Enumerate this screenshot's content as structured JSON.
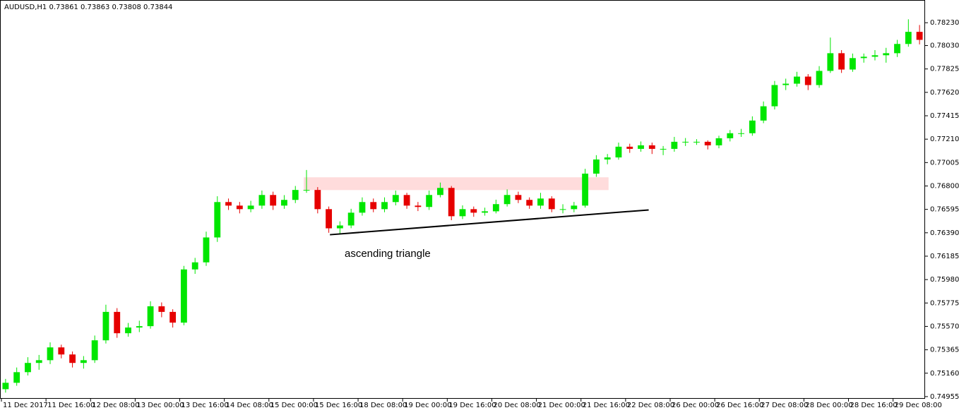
{
  "chart_data": {
    "type": "candlestick",
    "title": "AUDUSD,H1  0.73861 0.73863 0.73808 0.73844",
    "annotation": "ascending triangle",
    "up_color": "#00e600",
    "down_color": "#e60000",
    "categories": [
      "11 Dec 2017",
      null,
      null,
      null,
      "11 Dec 16:00",
      null,
      null,
      null,
      "12 Dec 08:00",
      null,
      null,
      null,
      "13 Dec 00:00",
      null,
      null,
      null,
      "13 Dec 16:00",
      null,
      null,
      null,
      "14 Dec 08:00",
      null,
      null,
      null,
      "15 Dec 00:00",
      null,
      null,
      null,
      "15 Dec 16:00",
      null,
      null,
      null,
      "18 Dec 08:00",
      null,
      null,
      null,
      "19 Dec 00:00",
      null,
      null,
      null,
      "19 Dec 16:00",
      null,
      null,
      null,
      "20 Dec 08:00",
      null,
      null,
      null,
      "21 Dec 00:00",
      null,
      null,
      null,
      "21 Dec 16:00",
      null,
      null,
      null,
      "22 Dec 08:00",
      null,
      null,
      null,
      "26 Dec 00:00",
      null,
      null,
      null,
      "26 Dec 16:00",
      null,
      null,
      null,
      "27 Dec 08:00",
      null,
      null,
      null,
      "28 Dec 00:00",
      null,
      null,
      null,
      "28 Dec 16:00",
      null,
      null,
      null,
      "29 Dec 08:00",
      null,
      null
    ],
    "open": [
      0.7502,
      0.75076,
      0.75169,
      0.7525,
      0.75274,
      0.75386,
      0.75324,
      0.7525,
      0.75274,
      0.75448,
      0.75697,
      0.7551,
      0.7556,
      0.75572,
      0.75746,
      0.75697,
      0.75603,
      0.76069,
      0.76131,
      0.76349,
      0.76659,
      0.76628,
      0.76597,
      0.76628,
      0.76721,
      0.76628,
      0.76678,
      0.76765,
      0.76765,
      0.76597,
      0.76429,
      0.76454,
      0.76566,
      0.76659,
      0.76597,
      0.76659,
      0.76721,
      0.76628,
      0.76616,
      0.76721,
      0.76783,
      0.76535,
      0.76597,
      0.76566,
      0.76578,
      0.76641,
      0.76721,
      0.76678,
      0.76628,
      0.7669,
      0.76597,
      0.76597,
      0.76628,
      0.76908,
      0.77032,
      0.7705,
      0.77144,
      0.77125,
      0.77156,
      0.77125,
      0.77125,
      0.77187,
      0.77187,
      0.77187,
      0.77156,
      0.77218,
      0.77262,
      0.77262,
      0.77373,
      0.77498,
      0.77684,
      0.77696,
      0.77758,
      0.77684,
      0.77808,
      0.77963,
      0.7782,
      0.7792,
      0.77932,
      0.77945,
      0.77963,
      0.78044,
      0.7815
    ],
    "high": [
      0.7511,
      0.7521,
      0.753,
      0.7532,
      0.7543,
      0.7541,
      0.7535,
      0.7531,
      0.7549,
      0.7576,
      0.7573,
      0.756,
      0.7562,
      0.7579,
      0.7578,
      0.7572,
      0.761,
      0.7617,
      0.764,
      0.7671,
      0.7669,
      0.7666,
      0.7667,
      0.7676,
      0.7675,
      0.7672,
      0.768,
      0.7694,
      0.7679,
      0.7662,
      0.7649,
      0.766,
      0.767,
      0.7669,
      0.767,
      0.7676,
      0.7674,
      0.7666,
      0.7676,
      0.7683,
      0.768,
      0.7663,
      0.7662,
      0.7661,
      0.7668,
      0.7677,
      0.7675,
      0.767,
      0.7674,
      0.7671,
      0.7664,
      0.7666,
      0.7695,
      0.7707,
      0.7708,
      0.7718,
      0.7717,
      0.7719,
      0.7718,
      0.7715,
      0.7723,
      0.7722,
      0.7721,
      0.772,
      0.7724,
      0.7729,
      0.773,
      0.7741,
      0.7754,
      0.7772,
      0.7774,
      0.778,
      0.7778,
      0.7785,
      0.781,
      0.7799,
      0.7796,
      0.7796,
      0.7799,
      0.7801,
      0.7808,
      0.7826,
      0.7821
    ],
    "low": [
      0.7499,
      0.7505,
      0.7514,
      0.7519,
      0.7524,
      0.7529,
      0.7521,
      0.752,
      0.7525,
      0.7542,
      0.7547,
      0.7548,
      0.7552,
      0.7555,
      0.7565,
      0.7556,
      0.7558,
      0.7603,
      0.761,
      0.7631,
      0.7659,
      0.7656,
      0.7657,
      0.766,
      0.7659,
      0.766,
      0.7665,
      0.7674,
      0.7656,
      0.7639,
      0.7638,
      0.7643,
      0.7654,
      0.7657,
      0.7657,
      0.7663,
      0.766,
      0.7658,
      0.7659,
      0.767,
      0.765,
      0.7651,
      0.7653,
      0.7654,
      0.7656,
      0.7662,
      0.7665,
      0.766,
      0.766,
      0.7657,
      0.7656,
      0.7657,
      0.7661,
      0.7688,
      0.7699,
      0.7703,
      0.7709,
      0.771,
      0.7708,
      0.7707,
      0.771,
      0.7715,
      0.7716,
      0.7712,
      0.7713,
      0.7719,
      0.7723,
      0.7724,
      0.7735,
      0.7747,
      0.7764,
      0.7767,
      0.7764,
      0.7766,
      0.7779,
      0.7779,
      0.778,
      0.7788,
      0.779,
      0.7788,
      0.7793,
      0.7802,
      0.7804
    ],
    "close": [
      0.75076,
      0.75169,
      0.7525,
      0.75274,
      0.75386,
      0.75324,
      0.7525,
      0.75274,
      0.75448,
      0.75697,
      0.7551,
      0.7556,
      0.75572,
      0.75746,
      0.75697,
      0.75603,
      0.76069,
      0.76131,
      0.76349,
      0.76659,
      0.76628,
      0.76597,
      0.76628,
      0.76721,
      0.76628,
      0.76678,
      0.76765,
      0.76765,
      0.76597,
      0.76429,
      0.76454,
      0.76566,
      0.76659,
      0.76597,
      0.76659,
      0.76721,
      0.76628,
      0.76616,
      0.76721,
      0.76783,
      0.76535,
      0.76597,
      0.76566,
      0.76578,
      0.76641,
      0.76721,
      0.76678,
      0.76628,
      0.7669,
      0.76597,
      0.76597,
      0.76628,
      0.76908,
      0.77032,
      0.7705,
      0.77144,
      0.77125,
      0.77156,
      0.77125,
      0.77125,
      0.77187,
      0.77187,
      0.77187,
      0.77156,
      0.77218,
      0.77262,
      0.77262,
      0.77373,
      0.77498,
      0.77684,
      0.77696,
      0.77758,
      0.77684,
      0.77808,
      0.77963,
      0.7782,
      0.7792,
      0.77932,
      0.77945,
      0.77963,
      0.78044,
      0.7815,
      0.7808
    ],
    "ylim": [
      0.74936,
      0.78429
    ],
    "yticks": [
      {
        "value": 0.7823,
        "label": "0.78230"
      },
      {
        "value": 0.7803,
        "label": "0.78030"
      },
      {
        "value": 0.77825,
        "label": "0.77825"
      },
      {
        "value": 0.7762,
        "label": "0.77620"
      },
      {
        "value": 0.77415,
        "label": "0.77415"
      },
      {
        "value": 0.7721,
        "label": "0.77210"
      },
      {
        "value": 0.77005,
        "label": "0.77005"
      },
      {
        "value": 0.768,
        "label": "0.76800"
      },
      {
        "value": 0.76595,
        "label": "0.76595"
      },
      {
        "value": 0.7639,
        "label": "0.76390"
      },
      {
        "value": 0.76185,
        "label": "0.76185"
      },
      {
        "value": 0.7598,
        "label": "0.75980"
      },
      {
        "value": 0.75775,
        "label": "0.75775"
      },
      {
        "value": 0.7557,
        "label": "0.75570"
      },
      {
        "value": 0.75365,
        "label": "0.75365"
      },
      {
        "value": 0.7516,
        "label": "0.75160"
      },
      {
        "value": 0.74955,
        "label": "0.74955"
      }
    ],
    "shapes": [
      {
        "kind": "rect",
        "x": [
          26.75,
          54.1
        ],
        "y": [
          0.76764,
          0.76876
        ],
        "color": "#ffdcdc"
      },
      {
        "kind": "line",
        "x": [
          29.1,
          57.7
        ],
        "y": [
          0.76373,
          0.7659
        ],
        "color": "#000000"
      }
    ]
  }
}
